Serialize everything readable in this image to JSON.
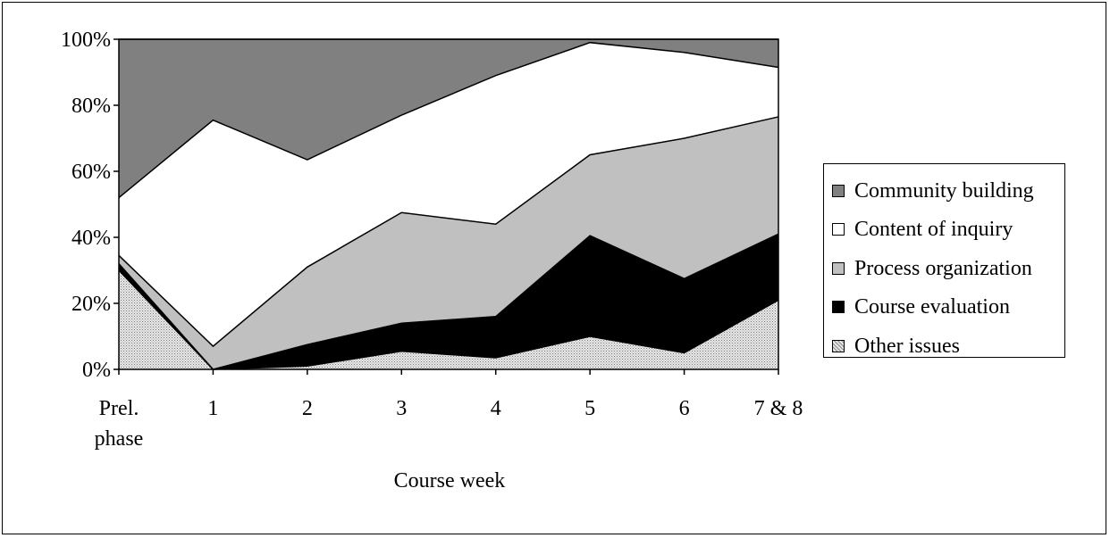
{
  "chart_data": {
    "type": "area",
    "stacked": true,
    "percent": true,
    "categories": [
      "Prel.\nphase",
      "1",
      "2",
      "3",
      "4",
      "5",
      "6",
      "7 & 8"
    ],
    "xlabel": "Course week",
    "ylabel": "",
    "ylim": [
      0,
      100
    ],
    "yticks": [
      "0%",
      "20%",
      "40%",
      "60%",
      "80%",
      "100%"
    ],
    "legend_position": "right",
    "grid": false,
    "series": [
      {
        "name": "Other issues",
        "color": "#d6d6d6",
        "pattern": "dotted",
        "values": [
          30,
          0,
          1,
          5.5,
          3.5,
          10,
          5,
          21
        ]
      },
      {
        "name": "Course evaluation",
        "color": "#000000",
        "values": [
          2,
          0,
          6.5,
          8.5,
          12.5,
          30.5,
          22.5,
          20
        ]
      },
      {
        "name": "Process organization",
        "color": "#c0c0c0",
        "values": [
          2.5,
          7,
          23.5,
          33.5,
          28,
          24.5,
          42.5,
          35.5
        ]
      },
      {
        "name": "Content of inquiry",
        "color": "#ffffff",
        "values": [
          17.5,
          68.5,
          32.5,
          29.5,
          45,
          34,
          26,
          15
        ]
      },
      {
        "name": "Community building",
        "color": "#808080",
        "values": [
          48,
          24.5,
          36.5,
          23,
          11,
          1,
          4,
          8.5
        ]
      }
    ],
    "legend_order": [
      "Community building",
      "Content of inquiry",
      "Process organization",
      "Course evaluation",
      "Other issues"
    ]
  }
}
